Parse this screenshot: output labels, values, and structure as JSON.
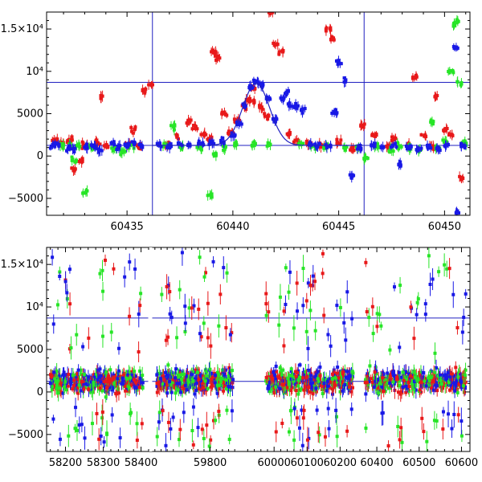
{
  "chart_data": [
    {
      "type": "scatter",
      "panel": "top",
      "xlim": [
        60431.2,
        60451.2
      ],
      "ylim": [
        -7000,
        17000
      ],
      "xticks": [
        60435,
        60440,
        60445,
        60450
      ],
      "xtick_labels": [
        "60435",
        "60440",
        "60445",
        "60450"
      ],
      "yticks": [
        -5000,
        0,
        5000,
        10000,
        15000
      ],
      "ytick_labels": [
        "−5000",
        "0",
        "5000",
        "10⁴",
        "1.5×10⁴"
      ],
      "grid": false,
      "vlines": [
        60436.2,
        60446.2
      ],
      "hlines": [
        8700,
        1250
      ],
      "flare_model": {
        "peak_x": 60441.1,
        "peak_y": 8600,
        "baseline": 1250,
        "width": 0.9,
        "from": 60436.2,
        "to": 60446.2
      },
      "colors": {
        "red": "#e8191a",
        "green": "#27e527",
        "blue": "#1919e6",
        "lines": "#2020c0"
      },
      "series": [
        {
          "color": "red",
          "points": [
            [
              60431.6,
              1800
            ],
            [
              60431.9,
              1500
            ],
            [
              60432.3,
              1900
            ],
            [
              60432.5,
              -1600
            ],
            [
              60432.8,
              -700
            ],
            [
              60433.0,
              1300
            ],
            [
              60433.6,
              1700
            ],
            [
              60433.8,
              6800
            ],
            [
              60434.0,
              1200
            ],
            [
              60435.0,
              1400
            ],
            [
              60435.3,
              3100
            ],
            [
              60435.6,
              1100
            ],
            [
              60435.8,
              7600
            ],
            [
              60436.1,
              8400
            ],
            [
              60436.9,
              1400
            ],
            [
              60437.3,
              2200
            ],
            [
              60437.9,
              4100
            ],
            [
              60438.2,
              3400
            ],
            [
              60438.6,
              2600
            ],
            [
              60438.9,
              2100
            ],
            [
              60439.1,
              12200
            ],
            [
              60439.3,
              11600
            ],
            [
              60439.6,
              5100
            ],
            [
              60439.9,
              2800
            ],
            [
              60440.2,
              4200
            ],
            [
              60440.5,
              5900
            ],
            [
              60440.7,
              6700
            ],
            [
              60440.9,
              6400
            ],
            [
              60441.0,
              8000
            ],
            [
              60441.3,
              5700
            ],
            [
              60441.6,
              4700
            ],
            [
              60441.8,
              17000
            ],
            [
              60442.0,
              13200
            ],
            [
              60442.3,
              12200
            ],
            [
              60442.6,
              2600
            ],
            [
              60443.0,
              1800
            ],
            [
              60443.6,
              1500
            ],
            [
              60444.2,
              1300
            ],
            [
              60444.5,
              14900
            ],
            [
              60444.7,
              14000
            ],
            [
              60445.0,
              1700
            ],
            [
              60445.6,
              900
            ],
            [
              60446.1,
              3600
            ],
            [
              60446.7,
              2500
            ],
            [
              60447.3,
              1100
            ],
            [
              60447.6,
              2000
            ],
            [
              60448.2,
              1300
            ],
            [
              60448.6,
              9300
            ],
            [
              60449.0,
              2400
            ],
            [
              60449.4,
              1100
            ],
            [
              60449.6,
              7100
            ],
            [
              60450.0,
              3000
            ],
            [
              60450.3,
              2500
            ],
            [
              60450.8,
              -2600
            ]
          ]
        },
        {
          "color": "green",
          "points": [
            [
              60431.9,
              1200
            ],
            [
              60432.3,
              1300
            ],
            [
              60432.5,
              -400
            ],
            [
              60432.7,
              1200
            ],
            [
              60433.0,
              -4300
            ],
            [
              60433.3,
              1100
            ],
            [
              60434.4,
              1000
            ],
            [
              60434.8,
              500
            ],
            [
              60435.2,
              1200
            ],
            [
              60436.8,
              1300
            ],
            [
              60437.2,
              3400
            ],
            [
              60437.6,
              1000
            ],
            [
              60438.4,
              800
            ],
            [
              60438.9,
              -4600
            ],
            [
              60439.2,
              200
            ],
            [
              60439.6,
              1000
            ],
            [
              60440.2,
              1500
            ],
            [
              60441.0,
              1400
            ],
            [
              60441.7,
              1300
            ],
            [
              60443.2,
              1300
            ],
            [
              60443.8,
              1100
            ],
            [
              60444.4,
              1200
            ],
            [
              60445.3,
              900
            ],
            [
              60445.9,
              1000
            ],
            [
              60446.3,
              -200
            ],
            [
              60446.8,
              1100
            ],
            [
              60447.5,
              600
            ],
            [
              60447.9,
              1200
            ],
            [
              60448.3,
              1000
            ],
            [
              60448.8,
              800
            ],
            [
              60449.4,
              4000
            ],
            [
              60449.7,
              1000
            ],
            [
              60450.0,
              1700
            ],
            [
              60450.3,
              10000
            ],
            [
              60450.5,
              15500
            ],
            [
              60450.6,
              16000
            ],
            [
              60450.7,
              8600
            ],
            [
              60450.9,
              1500
            ]
          ]
        },
        {
          "color": "blue",
          "points": [
            [
              60431.5,
              1200
            ],
            [
              60431.7,
              1300
            ],
            [
              60432.2,
              900
            ],
            [
              60432.5,
              700
            ],
            [
              60433.0,
              1100
            ],
            [
              60433.4,
              1200
            ],
            [
              60433.7,
              800
            ],
            [
              60434.3,
              1500
            ],
            [
              60434.6,
              1100
            ],
            [
              60435.0,
              1300
            ],
            [
              60435.3,
              1600
            ],
            [
              60435.7,
              1200
            ],
            [
              60436.5,
              1300
            ],
            [
              60437.0,
              1200
            ],
            [
              60437.5,
              1300
            ],
            [
              60438.0,
              1400
            ],
            [
              60438.5,
              1400
            ],
            [
              60439.0,
              1500
            ],
            [
              60439.5,
              1700
            ],
            [
              60440.0,
              2500
            ],
            [
              60440.3,
              3800
            ],
            [
              60440.6,
              6100
            ],
            [
              60440.9,
              8100
            ],
            [
              60441.1,
              8700
            ],
            [
              60441.4,
              8300
            ],
            [
              60441.7,
              6700
            ],
            [
              60442.0,
              4300
            ],
            [
              60442.3,
              6800
            ],
            [
              60442.5,
              7500
            ],
            [
              60442.7,
              6000
            ],
            [
              60443.0,
              5900
            ],
            [
              60443.3,
              5300
            ],
            [
              60443.6,
              1400
            ],
            [
              60444.0,
              1300
            ],
            [
              60444.5,
              1100
            ],
            [
              60444.8,
              5200
            ],
            [
              60445.0,
              11000
            ],
            [
              60445.3,
              9000
            ],
            [
              60445.6,
              -2300
            ],
            [
              60446.0,
              900
            ],
            [
              60446.6,
              1300
            ],
            [
              60447.1,
              1100
            ],
            [
              60447.6,
              1200
            ],
            [
              60447.9,
              -1000
            ],
            [
              60448.3,
              1000
            ],
            [
              60448.8,
              700
            ],
            [
              60449.3,
              1200
            ],
            [
              60449.7,
              800
            ],
            [
              60450.1,
              1300
            ],
            [
              60450.5,
              12800
            ],
            [
              60450.6,
              -6600
            ],
            [
              60450.9,
              1100
            ]
          ]
        }
      ]
    },
    {
      "type": "scatter",
      "panel": "bottom",
      "segments": [
        {
          "xlim": [
            58150,
            58420
          ],
          "xticks": [
            58200,
            58300,
            58400
          ],
          "xtick_labels": [
            "58200",
            "58300",
            "58400"
          ]
        },
        {
          "xlim": [
            59610,
            59890
          ],
          "xticks": [
            59800
          ],
          "xtick_labels": [
            "59800"
          ]
        },
        {
          "xlim": [
            59890,
            60260
          ],
          "xticks": [
            60000,
            60100,
            60200
          ],
          "xtick_labels": [
            "60000",
            "60100",
            "60200"
          ]
        },
        {
          "xlim": [
            60360,
            60620
          ],
          "xticks": [
            60400,
            60500,
            60600
          ],
          "xtick_labels": [
            "60400",
            "60500",
            "60600"
          ]
        }
      ],
      "ylim": [
        -7000,
        17000
      ],
      "yticks": [
        -5000,
        0,
        5000,
        10000,
        15000
      ],
      "ytick_labels": [
        "−5000",
        "0",
        "5000",
        "10⁴",
        "1.5×10⁴"
      ],
      "grid": false,
      "hlines": [
        8700,
        1250
      ],
      "observing_seasons": [
        {
          "x_from": 58160,
          "x_to": 58405,
          "y_center": 1200,
          "y_spread": 2200,
          "outlier_low": -6000,
          "outlier_high": 16000
        },
        {
          "x_from": 59625,
          "x_to": 59875,
          "y_center": 1300,
          "y_spread": 2300,
          "outlier_low": -6500,
          "outlier_high": 16500
        },
        {
          "x_from": 59975,
          "x_to": 60240,
          "y_center": 1300,
          "y_spread": 2300,
          "outlier_low": -6500,
          "outlier_high": 16500
        },
        {
          "x_from": 60372,
          "x_to": 60610,
          "y_center": 1300,
          "y_spread": 2200,
          "outlier_low": -6500,
          "outlier_high": 16500
        }
      ],
      "series": [
        {
          "color": "red"
        },
        {
          "color": "green"
        },
        {
          "color": "blue"
        }
      ]
    }
  ]
}
